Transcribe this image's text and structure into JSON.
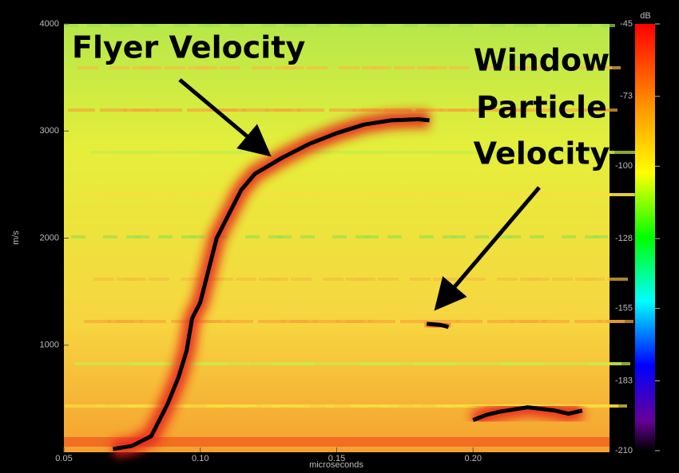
{
  "chart_data": {
    "type": "spectrogram",
    "x_label": "microseconds",
    "y_label": "m/s",
    "xlim": [
      0.05,
      0.25
    ],
    "xticks": [
      0.05,
      {
        "value": 0.1,
        "label": "0.10"
      },
      0.15,
      {
        "value": 0.2,
        "label": "0.20"
      }
    ],
    "ylim": [
      0,
      4000
    ],
    "yticks": [
      1000,
      2000,
      3000,
      4000
    ],
    "colorbar": {
      "label": "dB",
      "lim": [
        -210,
        -45
      ],
      "ticks": [
        -45,
        -73,
        -100,
        -128,
        -155,
        -183,
        -210
      ]
    },
    "annotations": [
      "Flyer Velocity",
      "Window",
      "Particle",
      "Velocity"
    ],
    "series": [
      {
        "color": "#000000",
        "x": [
          0.068,
          0.075,
          0.082,
          0.088,
          0.092,
          0.095,
          0.097,
          0.1,
          0.103,
          0.106,
          0.11,
          0.115,
          0.12,
          0.13,
          0.14,
          0.15,
          0.16,
          0.17,
          0.18,
          0.184
        ],
        "values": [
          30,
          60,
          150,
          450,
          700,
          950,
          1250,
          1400,
          1700,
          2000,
          2200,
          2450,
          2600,
          2750,
          2880,
          2980,
          3060,
          3100,
          3110,
          3100
        ]
      },
      {
        "color": "#000000",
        "x": [
          0.183,
          0.188,
          0.191
        ],
        "values": [
          1200,
          1190,
          1170
        ]
      },
      {
        "color": "#000000",
        "x": [
          0.2,
          0.205,
          0.21,
          0.22,
          0.23,
          0.235,
          0.24
        ],
        "values": [
          300,
          350,
          380,
          420,
          390,
          360,
          390
        ]
      }
    ]
  }
}
